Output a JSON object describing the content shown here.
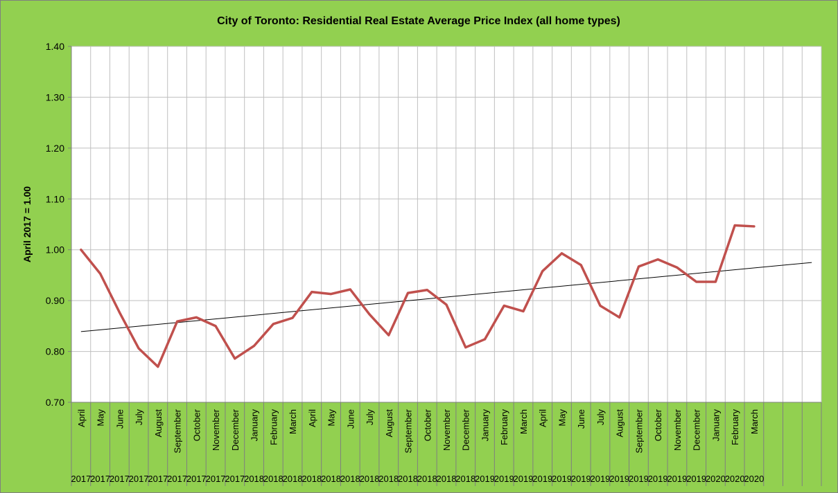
{
  "chart_data": {
    "type": "line",
    "title": "City of Toronto: Residential Real Estate Average Price Index  (all home types)",
    "xlabel": "",
    "ylabel": "April 2017 = 1.00",
    "ylim": [
      0.7,
      1.4
    ],
    "y_ticks": [
      "0.70",
      "0.80",
      "0.90",
      "1.00",
      "1.10",
      "1.20",
      "1.30",
      "1.40"
    ],
    "grid": true,
    "legend": "none",
    "categories": [
      "April",
      "May",
      "June",
      "July",
      "August",
      "September",
      "October",
      "November",
      "December",
      "January",
      "February",
      "March",
      "April",
      "May",
      "June",
      "July",
      "August",
      "September",
      "October",
      "November",
      "December",
      "January",
      "February",
      "March",
      "April",
      "May",
      "June",
      "July",
      "August",
      "September",
      "October",
      "November",
      "December",
      "January",
      "February",
      "March"
    ],
    "years": [
      "2017",
      "2017",
      "2017",
      "2017",
      "2017",
      "2017",
      "2017",
      "2017",
      "2017",
      "2018",
      "2018",
      "2018",
      "2018",
      "2018",
      "2018",
      "2018",
      "2018",
      "2018",
      "2018",
      "2018",
      "2018",
      "2019",
      "2019",
      "2019",
      "2019",
      "2019",
      "2019",
      "2019",
      "2019",
      "2019",
      "2019",
      "2019",
      "2019",
      "2020",
      "2020",
      "2020"
    ],
    "extra_empty_columns": 3,
    "series": [
      {
        "values": [
          1.0,
          0.953,
          0.877,
          0.806,
          0.77,
          0.859,
          0.867,
          0.85,
          0.786,
          0.811,
          0.854,
          0.866,
          0.917,
          0.913,
          0.922,
          0.873,
          0.832,
          0.915,
          0.921,
          0.892,
          0.808,
          0.824,
          0.89,
          0.879,
          0.958,
          0.993,
          0.97,
          0.89,
          0.867,
          0.967,
          0.981,
          0.965,
          0.937,
          0.937,
          1.048,
          1.046
        ],
        "color": "#C0504D"
      }
    ],
    "trendline": {
      "start": 0.839,
      "end": 0.975,
      "color": "#000000"
    },
    "colors": {
      "background": "#92D050",
      "plot_area": "#FFFFFF",
      "grid": "#BFBFBF"
    }
  }
}
